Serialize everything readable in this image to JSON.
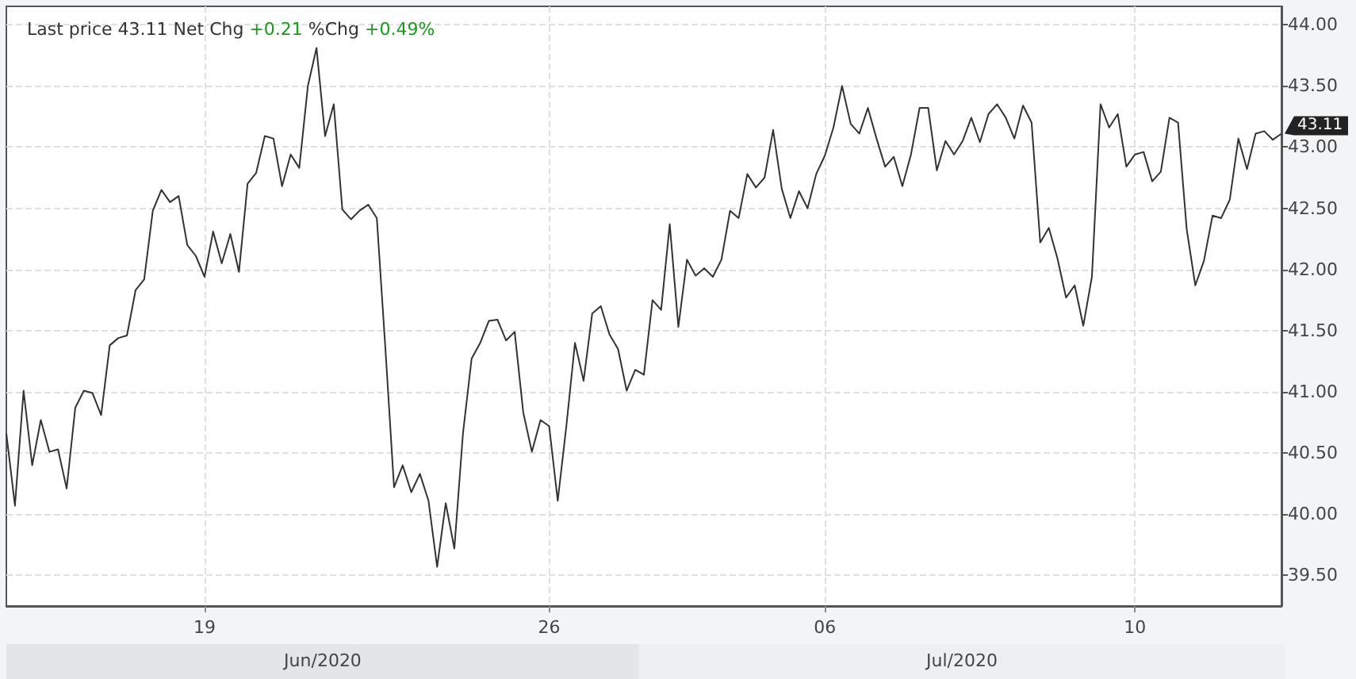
{
  "chart_data": {
    "type": "line",
    "title": "Last price 43.11 Net Chg +0.21 %Chg +0.49%",
    "categories": [
      null,
      null,
      null,
      null,
      null,
      null,
      null,
      null,
      null,
      null,
      null,
      null,
      null,
      null,
      null,
      null,
      null,
      null,
      null,
      null,
      null,
      null,
      null,
      "19",
      null,
      null,
      null,
      null,
      null,
      null,
      null,
      null,
      null,
      null,
      null,
      null,
      null,
      null,
      null,
      null,
      null,
      null,
      null,
      null,
      null,
      null,
      null,
      null,
      null,
      null,
      null,
      null,
      null,
      null,
      null,
      null,
      null,
      null,
      null,
      null,
      null,
      null,
      null,
      "26",
      null,
      null,
      null,
      null,
      null,
      null,
      null,
      null,
      null,
      null,
      null,
      null,
      null,
      null,
      null,
      null,
      null,
      null,
      null,
      null,
      null,
      null,
      null,
      null,
      null,
      null,
      null,
      null,
      null,
      null,
      null,
      "06",
      null,
      null,
      null,
      null,
      null,
      null,
      null,
      null,
      null,
      null,
      null,
      null,
      null,
      null,
      null,
      null,
      null,
      null,
      null,
      null,
      null,
      null,
      null,
      null,
      null,
      null,
      null,
      null,
      null,
      null,
      null,
      null,
      null,
      null,
      null,
      "10",
      null,
      null,
      null,
      null,
      null,
      null,
      null,
      null,
      null,
      null,
      null,
      null,
      null,
      null,
      null,
      null,
      null
    ],
    "series": [
      {
        "color": "#333333",
        "values": [
          40.66,
          40.07,
          41.01,
          40.4,
          40.77,
          40.51,
          40.53,
          40.21,
          40.87,
          41.01,
          40.99,
          40.81,
          41.38,
          41.44,
          41.46,
          41.83,
          41.92,
          42.48,
          42.65,
          42.55,
          42.6,
          42.2,
          42.11,
          41.94,
          42.31,
          42.05,
          42.29,
          41.98,
          42.7,
          42.79,
          43.09,
          43.07,
          42.68,
          42.94,
          42.83,
          43.5,
          43.81,
          43.09,
          43.35,
          42.49,
          42.41,
          42.48,
          42.53,
          42.42,
          41.35,
          40.22,
          40.4,
          40.18,
          40.33,
          40.11,
          39.57,
          40.09,
          39.72,
          40.66,
          41.27,
          41.4,
          41.58,
          41.59,
          41.42,
          41.49,
          40.83,
          40.51,
          40.77,
          40.72,
          40.11,
          40.72,
          41.4,
          41.09,
          41.64,
          41.7,
          41.47,
          41.35,
          41.01,
          41.18,
          41.14,
          41.75,
          41.67,
          42.37,
          41.53,
          42.08,
          41.95,
          42.01,
          41.94,
          42.08,
          42.48,
          42.42,
          42.78,
          42.67,
          42.75,
          43.14,
          42.66,
          42.42,
          42.64,
          42.5,
          42.78,
          42.93,
          43.16,
          43.5,
          43.19,
          43.11,
          43.32,
          43.07,
          42.84,
          42.92,
          42.68,
          42.94,
          43.32,
          43.32,
          42.81,
          43.05,
          42.94,
          43.05,
          43.24,
          43.04,
          43.27,
          43.35,
          43.24,
          43.07,
          43.34,
          43.2,
          42.22,
          42.34,
          42.09,
          41.77,
          41.87,
          41.54,
          41.94,
          43.35,
          43.16,
          43.27,
          42.84,
          42.94,
          42.96,
          42.72,
          42.8,
          43.24,
          43.2,
          42.33,
          41.87,
          42.07,
          42.44,
          42.42,
          42.57,
          43.07,
          42.82,
          43.11,
          43.13,
          43.06,
          43.11
        ]
      }
    ],
    "ylim": [
      39.25,
      44.15
    ],
    "yticks": [
      {
        "value": 39.5,
        "label": "39.50"
      },
      {
        "value": 40,
        "label": "40.00"
      },
      {
        "value": 40.5,
        "label": "40.50"
      },
      {
        "value": 41,
        "label": "41.00"
      },
      {
        "value": 41.5,
        "label": "41.50"
      },
      {
        "value": 42,
        "label": "42.00"
      },
      {
        "value": 42.5,
        "label": "42.50"
      },
      {
        "value": 43,
        "label": "43.00"
      },
      {
        "value": 43.5,
        "label": "43.50"
      },
      {
        "value": 44,
        "label": "44.00"
      }
    ],
    "grid": true,
    "marker": "none",
    "line_style": "solid",
    "annotations": [
      "43.11",
      "Jun/2020",
      "Jul/2020"
    ]
  }
}
